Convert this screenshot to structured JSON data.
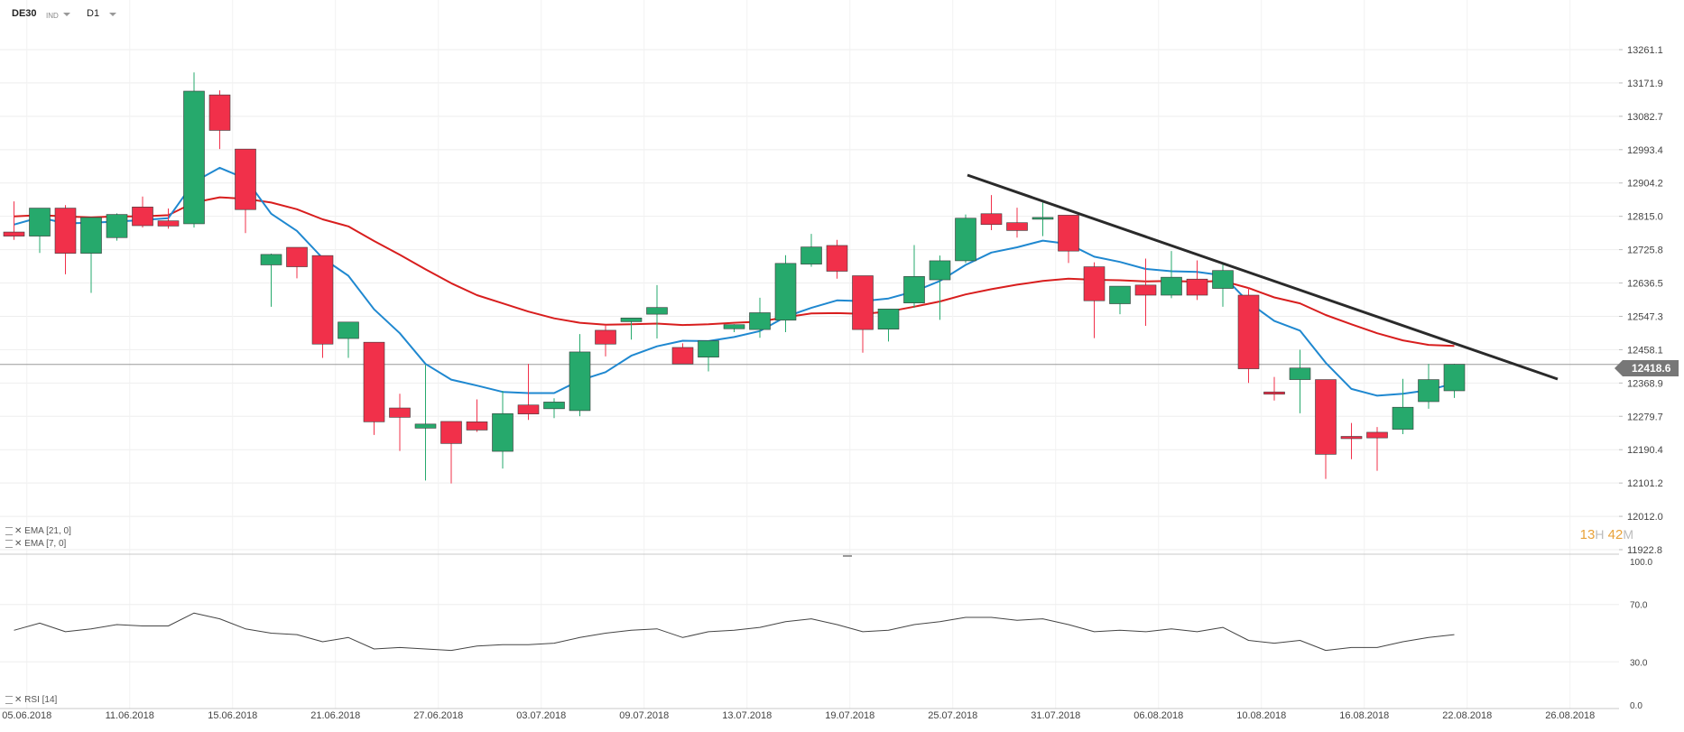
{
  "toolbar": {
    "symbol": "DE30",
    "symbol_type": "IND",
    "timeframe": "D1"
  },
  "price_tag": "12418.6",
  "timer": {
    "hours": "13",
    "h_unit": "H",
    "minutes": "42",
    "m_unit": "M"
  },
  "legend": {
    "ema21": "EMA [21, 0]",
    "ema7": "EMA [7, 0]",
    "rsi": "RSI [14]"
  },
  "colors": {
    "up": "#26a96c",
    "down": "#f1304a",
    "ema21": "#d81e1e",
    "ema7": "#1f88d0",
    "trendline": "#2a2a2a",
    "rsi": "#444444",
    "grid": "#eeeeee"
  },
  "chart_data": [
    {
      "type": "candlestick",
      "title": "",
      "y_ticks": [
        "13261.1",
        "13171.9",
        "13082.7",
        "12993.4",
        "12904.2",
        "12815.0",
        "12725.8",
        "12636.5",
        "12547.3",
        "12458.1",
        "12368.9",
        "12279.7",
        "12190.4",
        "12101.2",
        "12012.0",
        "11922.8"
      ],
      "ylim": [
        11922.8,
        13261.1
      ],
      "x_tick_labels": [
        "05.06.2018",
        "11.06.2018",
        "15.06.2018",
        "21.06.2018",
        "27.06.2018",
        "03.07.2018",
        "09.07.2018",
        "13.07.2018",
        "19.07.2018",
        "25.07.2018",
        "31.07.2018",
        "06.08.2018",
        "10.08.2018",
        "16.08.2018",
        "22.08.2018",
        "26.08.2018"
      ],
      "x_tick_index": [
        0,
        4,
        8,
        12,
        16,
        20,
        24,
        28,
        32,
        36,
        40,
        44,
        48,
        52,
        56,
        60
      ],
      "current_price": 12418.6,
      "candles": [
        {
          "o": 12773,
          "h": 12855,
          "l": 12752,
          "c": 12762
        },
        {
          "o": 12762,
          "h": 12836,
          "l": 12717,
          "c": 12837
        },
        {
          "o": 12837,
          "h": 12845,
          "l": 12660,
          "c": 12716
        },
        {
          "o": 12716,
          "h": 12802,
          "l": 12610,
          "c": 12812
        },
        {
          "o": 12758,
          "h": 12823,
          "l": 12750,
          "c": 12820
        },
        {
          "o": 12840,
          "h": 12868,
          "l": 12785,
          "c": 12790
        },
        {
          "o": 12803,
          "h": 12836,
          "l": 12782,
          "c": 12789
        },
        {
          "o": 12795,
          "h": 13200,
          "l": 12785,
          "c": 13150
        },
        {
          "o": 13140,
          "h": 13152,
          "l": 12995,
          "c": 13045
        },
        {
          "o": 12995,
          "h": 12995,
          "l": 12770,
          "c": 12833
        },
        {
          "o": 12685,
          "h": 12715,
          "l": 12573,
          "c": 12713
        },
        {
          "o": 12732,
          "h": 12732,
          "l": 12649,
          "c": 12680
        },
        {
          "o": 12710,
          "h": 12710,
          "l": 12436,
          "c": 12473
        },
        {
          "o": 12488,
          "h": 12525,
          "l": 12436,
          "c": 12532
        },
        {
          "o": 12478,
          "h": 12478,
          "l": 12230,
          "c": 12265
        },
        {
          "o": 12302,
          "h": 12340,
          "l": 12187,
          "c": 12277
        },
        {
          "o": 12248,
          "h": 12417,
          "l": 12108,
          "c": 12259
        },
        {
          "o": 12266,
          "h": 12266,
          "l": 12100,
          "c": 12207
        },
        {
          "o": 12265,
          "h": 12325,
          "l": 12238,
          "c": 12243
        },
        {
          "o": 12186,
          "h": 12348,
          "l": 12140,
          "c": 12287
        },
        {
          "o": 12310,
          "h": 12420,
          "l": 12270,
          "c": 12286
        },
        {
          "o": 12300,
          "h": 12328,
          "l": 12275,
          "c": 12318
        },
        {
          "o": 12295,
          "h": 12500,
          "l": 12280,
          "c": 12452
        },
        {
          "o": 12510,
          "h": 12525,
          "l": 12440,
          "c": 12473
        },
        {
          "o": 12533,
          "h": 12537,
          "l": 12485,
          "c": 12543
        },
        {
          "o": 12553,
          "h": 12631,
          "l": 12488,
          "c": 12571
        },
        {
          "o": 12464,
          "h": 12475,
          "l": 12424,
          "c": 12420
        },
        {
          "o": 12438,
          "h": 12475,
          "l": 12400,
          "c": 12482
        },
        {
          "o": 12514,
          "h": 12526,
          "l": 12505,
          "c": 12525
        },
        {
          "o": 12512,
          "h": 12597,
          "l": 12490,
          "c": 12557
        },
        {
          "o": 12537,
          "h": 12711,
          "l": 12505,
          "c": 12689
        },
        {
          "o": 12687,
          "h": 12768,
          "l": 12680,
          "c": 12733
        },
        {
          "o": 12737,
          "h": 12752,
          "l": 12648,
          "c": 12668
        },
        {
          "o": 12656,
          "h": 12656,
          "l": 12450,
          "c": 12512
        },
        {
          "o": 12513,
          "h": 12557,
          "l": 12480,
          "c": 12567
        },
        {
          "o": 12583,
          "h": 12738,
          "l": 12570,
          "c": 12654
        },
        {
          "o": 12645,
          "h": 12710,
          "l": 12538,
          "c": 12696
        },
        {
          "o": 12696,
          "h": 12820,
          "l": 12690,
          "c": 12810
        },
        {
          "o": 12822,
          "h": 12872,
          "l": 12778,
          "c": 12793
        },
        {
          "o": 12798,
          "h": 12838,
          "l": 12758,
          "c": 12777
        },
        {
          "o": 12809,
          "h": 12852,
          "l": 12762,
          "c": 12812
        },
        {
          "o": 12818,
          "h": 12818,
          "l": 12690,
          "c": 12722
        },
        {
          "o": 12680,
          "h": 12692,
          "l": 12489,
          "c": 12589
        },
        {
          "o": 12581,
          "h": 12627,
          "l": 12553,
          "c": 12628
        },
        {
          "o": 12631,
          "h": 12702,
          "l": 12522,
          "c": 12604
        },
        {
          "o": 12604,
          "h": 12722,
          "l": 12596,
          "c": 12652
        },
        {
          "o": 12647,
          "h": 12697,
          "l": 12591,
          "c": 12604
        },
        {
          "o": 12622,
          "h": 12686,
          "l": 12573,
          "c": 12670
        },
        {
          "o": 12604,
          "h": 12625,
          "l": 12369,
          "c": 12407
        },
        {
          "o": 12345,
          "h": 12385,
          "l": 12322,
          "c": 12339
        },
        {
          "o": 12378,
          "h": 12458,
          "l": 12288,
          "c": 12409
        },
        {
          "o": 12378,
          "h": 12378,
          "l": 12112,
          "c": 12178
        },
        {
          "o": 12226,
          "h": 12262,
          "l": 12165,
          "c": 12220
        },
        {
          "o": 12237,
          "h": 12251,
          "l": 12134,
          "c": 12222
        },
        {
          "o": 12245,
          "h": 12380,
          "l": 12232,
          "c": 12304
        },
        {
          "o": 12319,
          "h": 12420,
          "l": 12300,
          "c": 12378
        },
        {
          "o": 12348,
          "h": 12420,
          "l": 12329,
          "c": 12419
        }
      ],
      "ema7": [
        12793,
        12812,
        12796,
        12798,
        12801,
        12805,
        12810,
        12907,
        12945,
        12916,
        12822,
        12776,
        12703,
        12656,
        12566,
        12502,
        12420,
        12378,
        12362,
        12345,
        12342,
        12342,
        12376,
        12398,
        12442,
        12467,
        12482,
        12481,
        12492,
        12508,
        12546,
        12570,
        12590,
        12588,
        12595,
        12614,
        12642,
        12685,
        12718,
        12732,
        12750,
        12741,
        12707,
        12693,
        12674,
        12668,
        12666,
        12657,
        12585,
        12535,
        12509,
        12423,
        12353,
        12335,
        12340,
        12350,
        12368
      ],
      "ema21": [
        12815,
        12818,
        12815,
        12812,
        12815,
        12815,
        12818,
        12852,
        12866,
        12862,
        12852,
        12834,
        12807,
        12788,
        12749,
        12712,
        12673,
        12636,
        12604,
        12582,
        12560,
        12542,
        12530,
        12525,
        12526,
        12528,
        12524,
        12526,
        12530,
        12533,
        12545,
        12555,
        12556,
        12554,
        12560,
        12573,
        12587,
        12606,
        12620,
        12632,
        12642,
        12648,
        12645,
        12644,
        12641,
        12642,
        12640,
        12642,
        12623,
        12598,
        12582,
        12551,
        12526,
        12502,
        12483,
        12471,
        12468
      ]
    },
    {
      "type": "line",
      "title": "",
      "y_ticks": [
        "100.0",
        "70.0",
        "30.0",
        "0.0"
      ],
      "ylim": [
        0,
        100
      ],
      "series": [
        {
          "name": "RSI [14]",
          "values": [
            52,
            57,
            51,
            53,
            56,
            55,
            55,
            64,
            60,
            53,
            50,
            49,
            44,
            47,
            39,
            40,
            39,
            38,
            41,
            42,
            42,
            43,
            47,
            50,
            52,
            53,
            47,
            51,
            52,
            54,
            58,
            60,
            56,
            51,
            52,
            56,
            58,
            61,
            61,
            59,
            60,
            56,
            51,
            52,
            51,
            53,
            51,
            54,
            45,
            43,
            45,
            38,
            40,
            40,
            44,
            47,
            49
          ]
        }
      ]
    }
  ]
}
